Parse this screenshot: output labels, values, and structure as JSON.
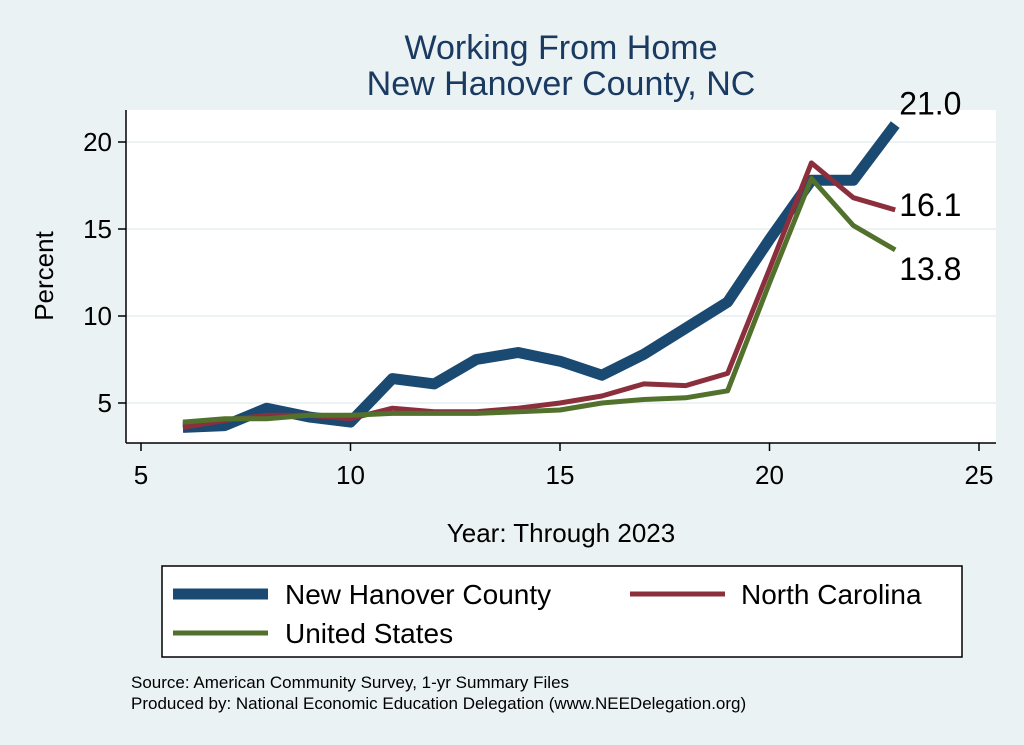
{
  "chart_data": {
    "type": "line",
    "title": "Working From Home",
    "subtitle": "New Hanover County, NC",
    "xlabel": "Year: Through 2023",
    "ylabel": "Percent",
    "xlim": [
      5,
      25
    ],
    "ylim": [
      2.8,
      22.8
    ],
    "xticks": [
      "5",
      "10",
      "15",
      "20",
      "25"
    ],
    "yticks": [
      "5",
      "10",
      "15",
      "20"
    ],
    "grid": true,
    "legend_position": "bottom",
    "series": [
      {
        "name": "New Hanover County",
        "color": "#1a4a72",
        "width": 11,
        "points": [
          [
            6,
            3.6
          ],
          [
            7,
            3.7
          ],
          [
            8,
            4.7
          ],
          [
            9,
            4.2
          ],
          [
            10,
            3.9
          ],
          [
            11,
            6.4
          ],
          [
            12,
            6.1
          ],
          [
            13,
            7.5
          ],
          [
            14,
            7.9
          ],
          [
            15,
            7.4
          ],
          [
            16,
            6.6
          ],
          [
            17,
            7.8
          ],
          [
            18,
            9.3
          ],
          [
            19,
            10.8
          ],
          [
            20,
            14.4
          ],
          [
            21,
            17.8
          ],
          [
            22,
            17.8
          ],
          [
            23,
            21.0
          ]
        ],
        "end_label": "21.0"
      },
      {
        "name": "North Carolina",
        "color": "#8b2f3c",
        "width": 5,
        "points": [
          [
            6,
            3.6
          ],
          [
            7,
            4.0
          ],
          [
            8,
            4.3
          ],
          [
            9,
            4.3
          ],
          [
            10,
            4.1
          ],
          [
            11,
            4.7
          ],
          [
            12,
            4.5
          ],
          [
            13,
            4.5
          ],
          [
            14,
            4.7
          ],
          [
            15,
            5.0
          ],
          [
            16,
            5.4
          ],
          [
            17,
            6.1
          ],
          [
            18,
            6.0
          ],
          [
            19,
            6.7
          ],
          [
            20,
            12.7
          ],
          [
            21,
            18.8
          ],
          [
            22,
            16.8
          ],
          [
            23,
            16.1
          ]
        ],
        "end_label": "16.1"
      },
      {
        "name": "United States",
        "color": "#52712c",
        "width": 5,
        "points": [
          [
            6,
            3.9
          ],
          [
            7,
            4.1
          ],
          [
            8,
            4.1
          ],
          [
            9,
            4.3
          ],
          [
            10,
            4.3
          ],
          [
            11,
            4.4
          ],
          [
            12,
            4.4
          ],
          [
            13,
            4.4
          ],
          [
            14,
            4.5
          ],
          [
            15,
            4.6
          ],
          [
            16,
            5.0
          ],
          [
            17,
            5.2
          ],
          [
            18,
            5.3
          ],
          [
            19,
            5.7
          ],
          [
            20,
            11.9
          ],
          [
            21,
            17.9
          ],
          [
            22,
            15.2
          ],
          [
            23,
            13.8
          ]
        ],
        "end_label": "13.8"
      }
    ]
  },
  "source_line": "Source: American Community Survey, 1-yr Summary Files",
  "produced_line": "Produced by: National Economic Education Delegation (www.NEEDelegation.org)"
}
